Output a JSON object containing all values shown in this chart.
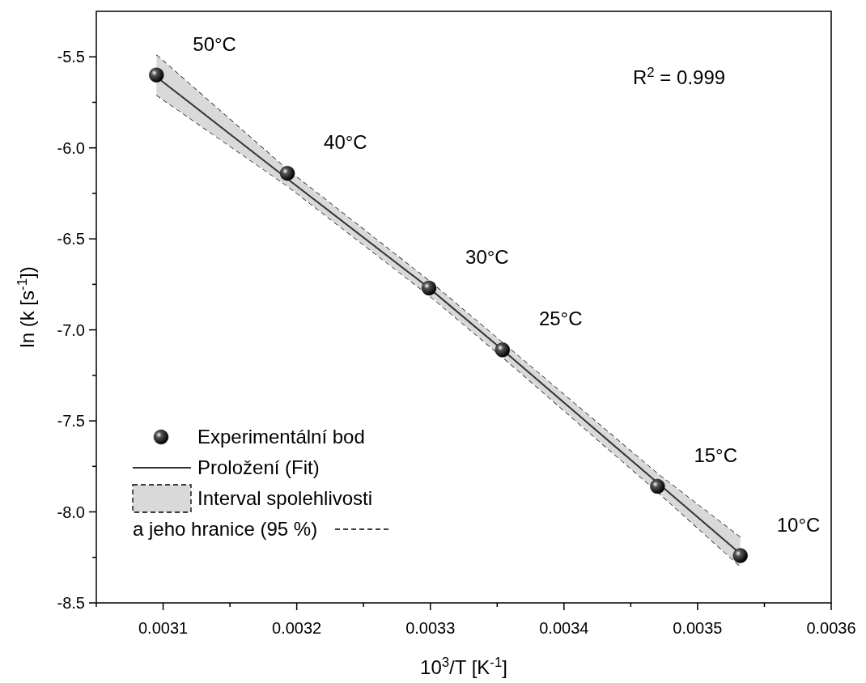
{
  "chart_data": {
    "type": "scatter",
    "xlabel": "10$^{3}$/T [K$^{-1}$]",
    "ylabel": "ln (k [s$^{-1}$])",
    "xlim": [
      0.00305,
      0.0036
    ],
    "ylim": [
      -8.5,
      -5.25
    ],
    "xticks": [
      {
        "value": 0.00305,
        "label": null
      },
      0.0031,
      {
        "value": 0.00315,
        "label": null
      },
      0.0032,
      {
        "value": 0.00325,
        "label": null
      },
      0.0033,
      {
        "value": 0.00335,
        "label": null
      },
      0.0034,
      {
        "value": 0.00345,
        "label": null
      },
      0.0035,
      {
        "value": 0.00355,
        "label": null
      },
      0.0036
    ],
    "yticks": [
      -8.5,
      {
        "value": -8.25,
        "label": null
      },
      {
        "value": -8,
        "label": "-8.0"
      },
      {
        "value": -7.75,
        "label": null
      },
      -7.5,
      {
        "value": -7.25,
        "label": null
      },
      {
        "value": -7,
        "label": "-7.0"
      },
      {
        "value": -6.75,
        "label": null
      },
      -6.5,
      {
        "value": -6.25,
        "label": null
      },
      {
        "value": -6,
        "label": "-6.0"
      },
      {
        "value": -5.75,
        "label": null
      },
      -5.5
    ],
    "legend": "bottom left",
    "grid": false,
    "series": [
      {
        "type": "line",
        "color": "#000000",
        "line_style": "dashed",
        "x": [
          0.003095,
          0.003193,
          0.003299,
          0.003354,
          0.00347,
          0.003532
        ],
        "values": [
          -5.71,
          -6.21,
          -6.81,
          -7.15,
          -7.89,
          -8.3
        ]
      },
      {
        "type": "line",
        "name": "Interval spolehlivosti a jeho hranice (95 %)",
        "color": "#000000",
        "line_style": "dashed",
        "x": [
          0.003095,
          0.003193,
          0.003299,
          0.003354,
          0.00347,
          0.003532
        ],
        "values": [
          -5.49,
          -6.12,
          -6.73,
          -7.07,
          -7.79,
          -8.14
        ]
      },
      {
        "type": "line",
        "name": "Proložení (Fit)",
        "color": "#333333",
        "line_style": "solid",
        "x": [
          0.003095,
          0.003193,
          0.003299,
          0.003354,
          0.00347,
          0.003532
        ],
        "values": [
          -5.61,
          -6.17,
          -6.77,
          -7.11,
          -7.84,
          -8.23
        ],
        "lower": [
          -5.71,
          -6.21,
          -6.81,
          -7.15,
          -7.89,
          -8.3
        ],
        "upper": [
          -5.49,
          -6.12,
          -6.73,
          -7.07,
          -7.79,
          -8.14
        ]
      },
      {
        "name": "Experimentální bod",
        "color": "#1a1a1a",
        "marker": "circle",
        "x": [
          0.003095,
          0.003193,
          0.003299,
          0.003354,
          0.00347,
          0.003532
        ],
        "values": [
          -5.6,
          -6.14,
          -6.77,
          -7.11,
          -7.86,
          -8.24
        ]
      }
    ],
    "annotations": [
      {
        "text": "50°C",
        "x": 0.003095,
        "y": -5.6
      },
      {
        "text": "40°C",
        "x": 0.003193,
        "y": -6.14
      },
      {
        "text": "30°C",
        "x": 0.003299,
        "y": -6.77
      },
      {
        "text": "25°C",
        "x": 0.003354,
        "y": -7.11
      },
      {
        "text": "15°C",
        "x": 0.00347,
        "y": -7.86
      },
      {
        "text": "10°C",
        "x": 0.003532,
        "y": -8.24
      },
      "R$^{2}$ = 0.999"
    ]
  }
}
